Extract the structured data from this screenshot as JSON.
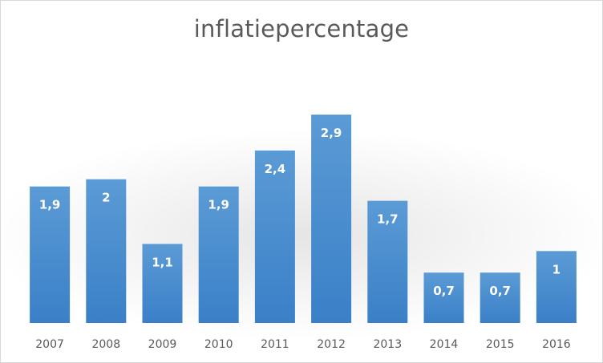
{
  "chart_data": {
    "type": "bar",
    "title": "inflatiepercentage",
    "categories": [
      "2007",
      "2008",
      "2009",
      "2010",
      "2011",
      "2012",
      "2013",
      "2014",
      "2015",
      "2016"
    ],
    "values": [
      1.9,
      2,
      1.1,
      1.9,
      2.4,
      2.9,
      1.7,
      0.7,
      0.7,
      1
    ],
    "data_labels": [
      "1,9",
      "2",
      "1,1",
      "1,9",
      "2,4",
      "2,9",
      "1,7",
      "0,7",
      "0,7",
      "1"
    ],
    "xlabel": "",
    "ylabel": "",
    "ylim": [
      0,
      2.9
    ],
    "grid": false,
    "legend": "none",
    "colors": {
      "bar_top": "#5b9bd5",
      "bar_bottom": "#3a80c8",
      "label": "#ffffff",
      "axis_text": "#595959"
    }
  }
}
